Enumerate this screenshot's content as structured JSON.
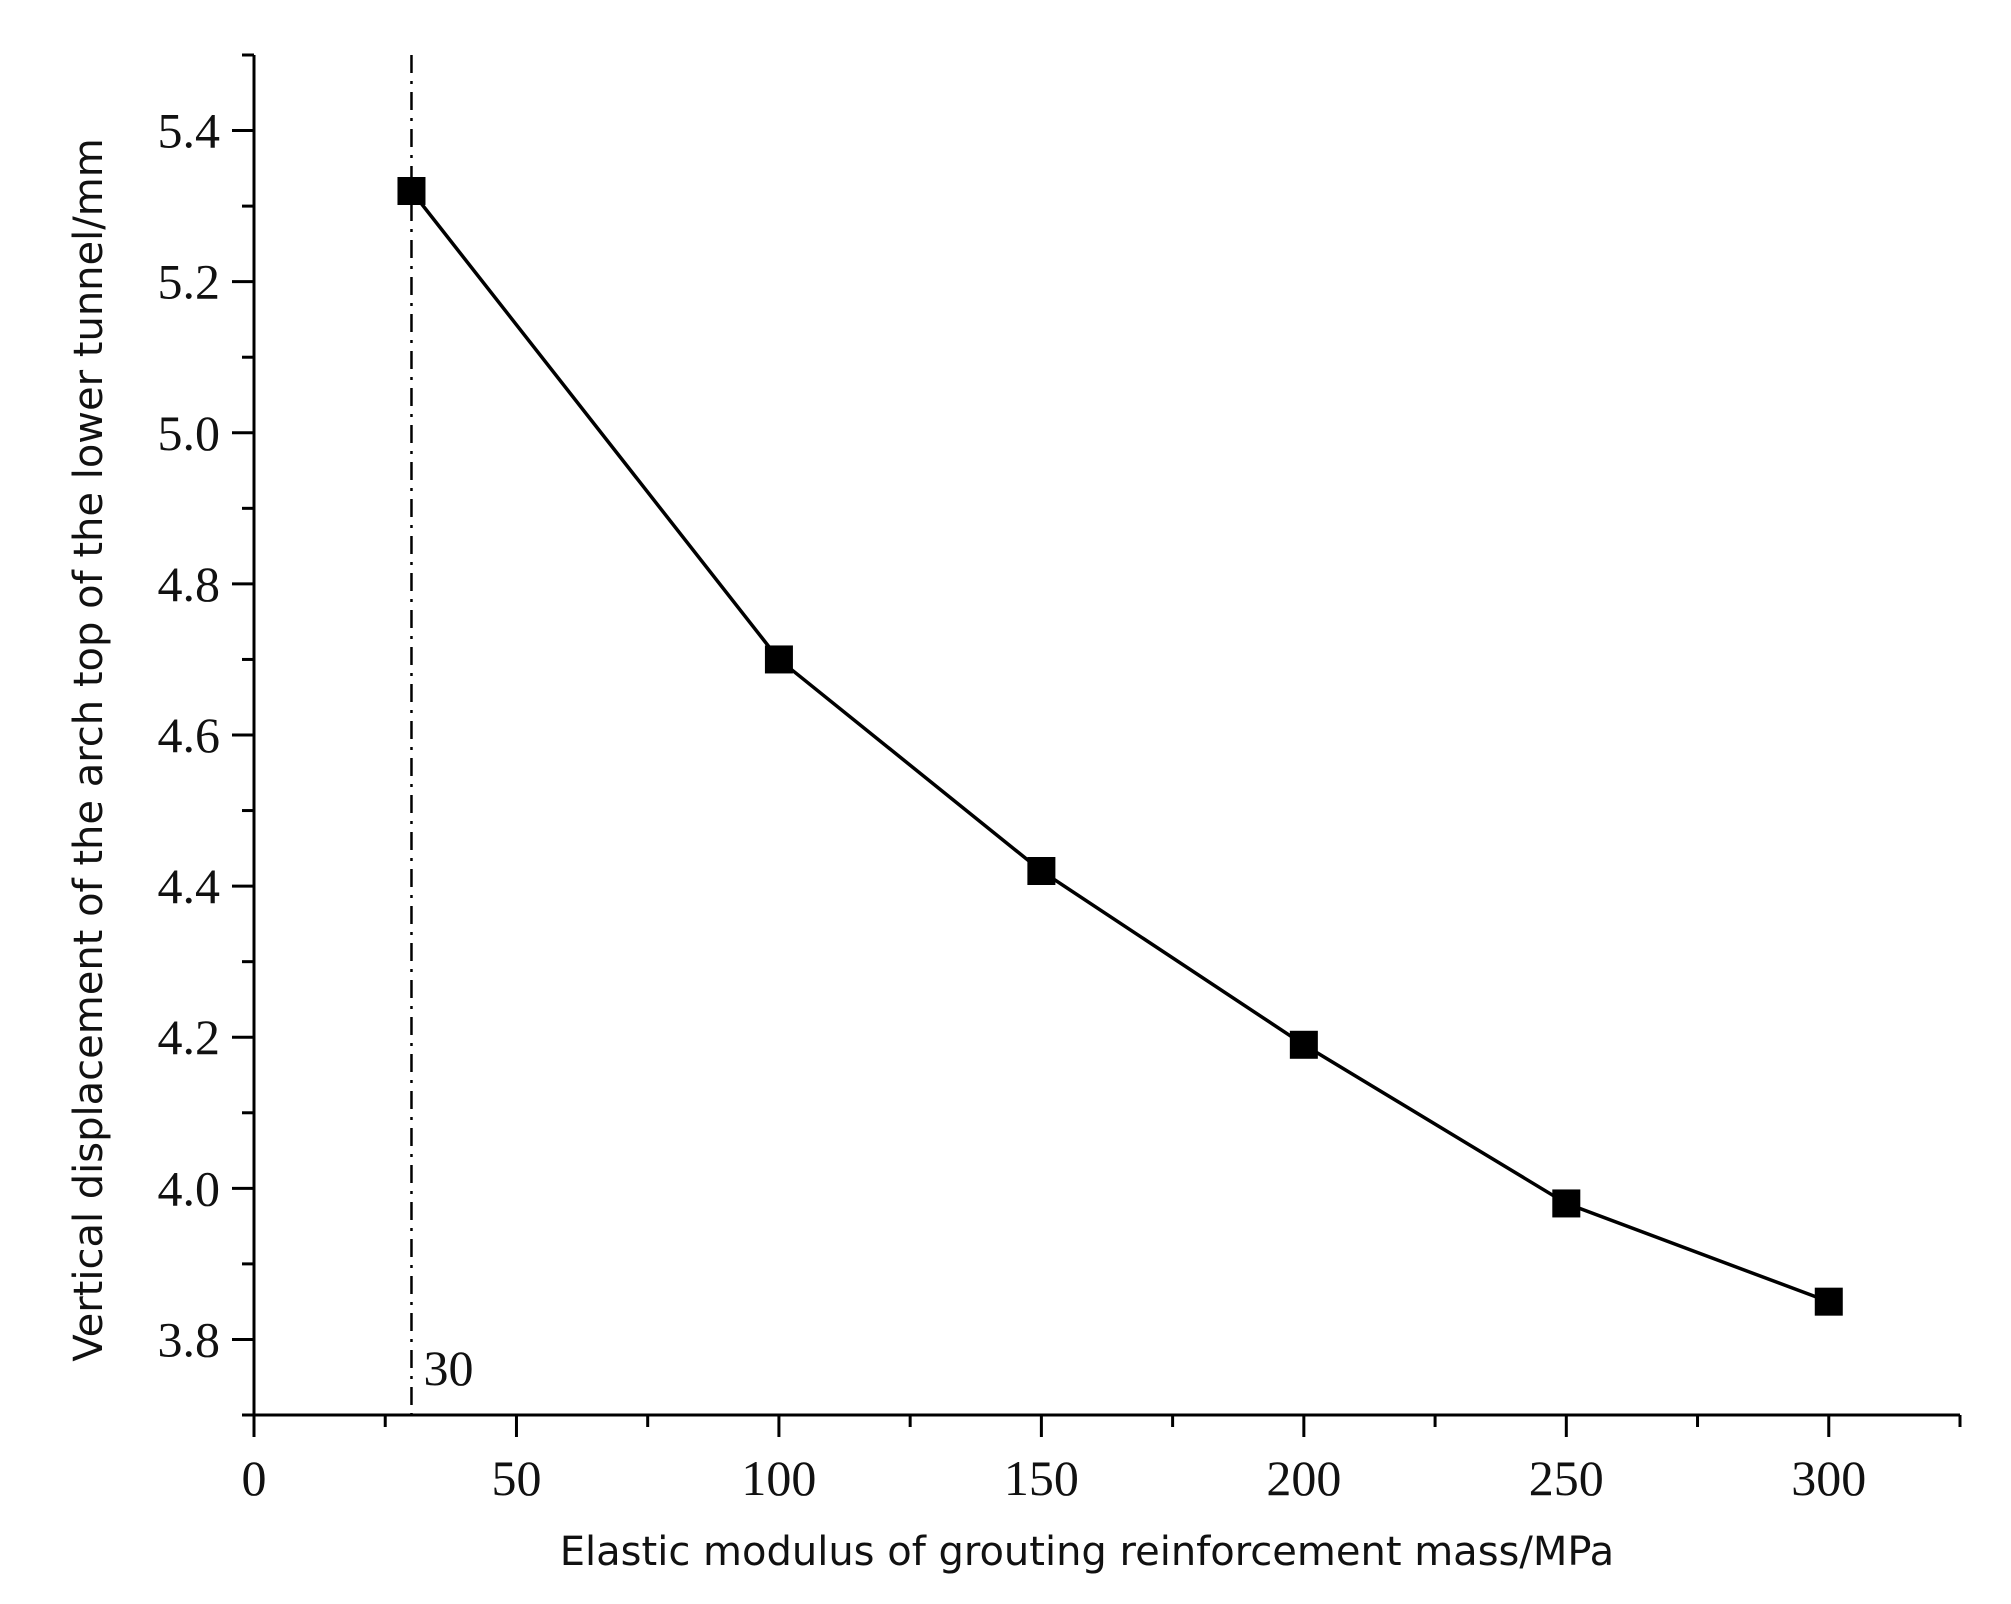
{
  "chart_data": {
    "type": "line",
    "x": [
      30,
      100,
      150,
      200,
      250,
      300
    ],
    "series": [
      {
        "values": [
          5.32,
          4.7,
          4.42,
          4.19,
          3.98,
          3.85
        ]
      }
    ],
    "xlabel": "Elastic modulus of grouting reinforcement mass/MPa",
    "ylabel": "Vertical displacement of the arch top of the lower tunnel/mm",
    "xlim": [
      0,
      325
    ],
    "ylim": [
      3.7,
      5.5
    ],
    "xticks": [
      "0",
      "50",
      "100",
      "150",
      "200",
      "250",
      "300"
    ],
    "yticks": [
      "3.8",
      "4.0",
      "4.2",
      "4.4",
      "4.6",
      "4.8",
      "5.0",
      "5.2",
      "5.4"
    ],
    "reference_line": {
      "x": 30,
      "label": "30",
      "style": "dash-dot"
    },
    "marker": "square",
    "grid": false,
    "colors": {
      "line": "#000000",
      "marker": "#000000"
    }
  }
}
